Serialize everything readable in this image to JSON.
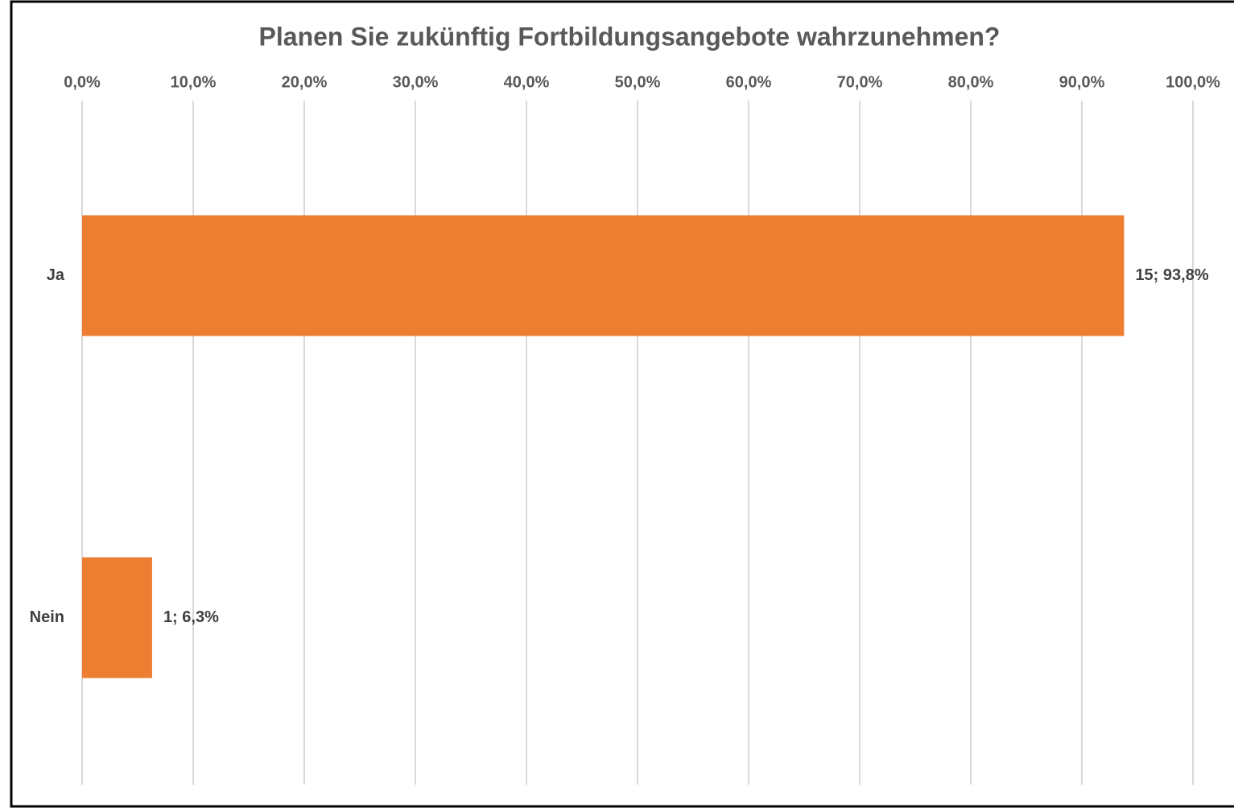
{
  "chart_data": {
    "type": "bar",
    "orientation": "horizontal",
    "title": "Planen Sie zukünftig Fortbildungsangebote wahrzunehmen?",
    "categories": [
      "Ja",
      "Nein"
    ],
    "values": [
      93.8,
      6.3
    ],
    "value_labels": [
      "15; 93,8%",
      "1; 6,3%"
    ],
    "color": "#ed7d31",
    "xlim": [
      0,
      100
    ],
    "xticks": [
      {
        "value": 0,
        "label": "0,0%"
      },
      {
        "value": 10,
        "label": "10,0%"
      },
      {
        "value": 20,
        "label": "20,0%"
      },
      {
        "value": 30,
        "label": "30,0%"
      },
      {
        "value": 40,
        "label": "40,0%"
      },
      {
        "value": 50,
        "label": "50,0%"
      },
      {
        "value": 60,
        "label": "60,0%"
      },
      {
        "value": 70,
        "label": "70,0%"
      },
      {
        "value": 80,
        "label": "80,0%"
      },
      {
        "value": 90,
        "label": "90,0%"
      },
      {
        "value": 100,
        "label": "100,0%"
      }
    ],
    "grid": true
  }
}
